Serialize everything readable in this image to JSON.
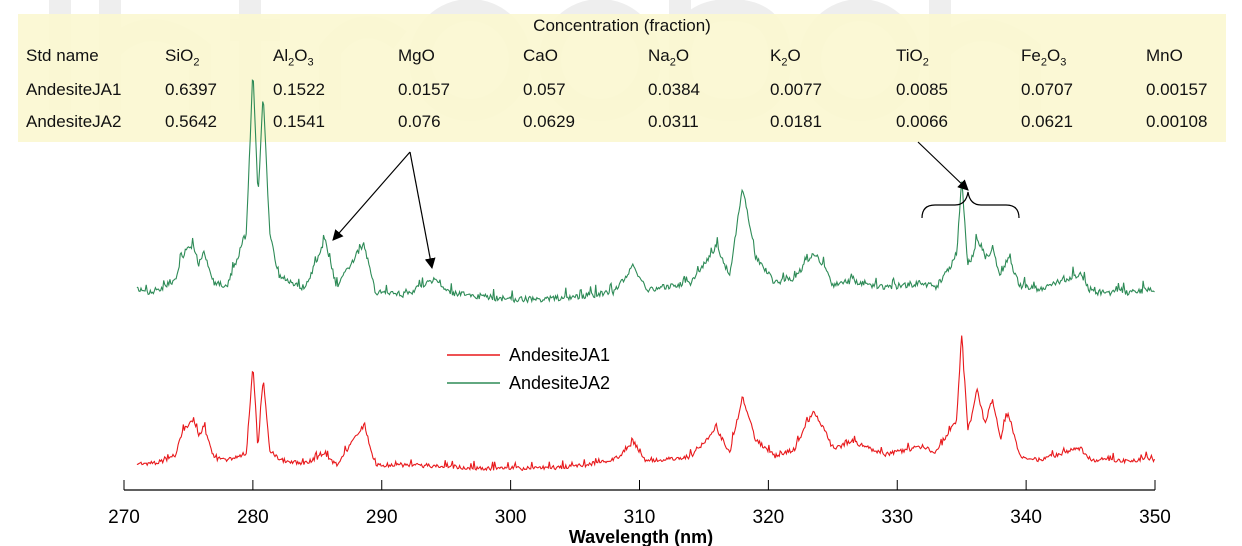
{
  "chart_data": {
    "type": "line",
    "xlabel": "Wavelength (nm)",
    "xlim": [
      270,
      350
    ],
    "xticks": [
      270,
      280,
      290,
      300,
      310,
      320,
      330,
      340,
      350
    ],
    "y_axis_shown": false,
    "legend_position": "center",
    "series": [
      {
        "name": "AndesiteJA1",
        "color": "#e8191c",
        "x": [
          271,
          272,
          273,
          274,
          274.5,
          275,
          275.4,
          275.8,
          276.2,
          277,
          278,
          279.5,
          280,
          280.4,
          280.8,
          281.3,
          282,
          284,
          285.6,
          286.5,
          288.6,
          289.5,
          292,
          295,
          298,
          300,
          302,
          305,
          308,
          309,
          309.5,
          310.5,
          314,
          316,
          317,
          318,
          319,
          320.5,
          322,
          323.5,
          324,
          324.5,
          325,
          326.5,
          329,
          332,
          333,
          334.6,
          335,
          335.5,
          336.2,
          336.8,
          337.4,
          338,
          338.6,
          339.5,
          341,
          344.2,
          345,
          346.5,
          348,
          349.5,
          350
        ],
        "values": [
          0.04,
          0.04,
          0.05,
          0.09,
          0.22,
          0.27,
          0.3,
          0.2,
          0.26,
          0.07,
          0.06,
          0.1,
          0.62,
          0.12,
          0.55,
          0.12,
          0.06,
          0.04,
          0.09,
          0.03,
          0.26,
          0.03,
          0.03,
          0.02,
          0.01,
          0.01,
          0.01,
          0.02,
          0.06,
          0.12,
          0.17,
          0.05,
          0.08,
          0.24,
          0.1,
          0.43,
          0.18,
          0.08,
          0.12,
          0.35,
          0.28,
          0.22,
          0.12,
          0.17,
          0.09,
          0.14,
          0.1,
          0.29,
          0.78,
          0.22,
          0.48,
          0.27,
          0.42,
          0.18,
          0.34,
          0.08,
          0.06,
          0.13,
          0.06,
          0.06,
          0.05,
          0.07,
          0.05
        ]
      },
      {
        "name": "AndesiteJA2",
        "color": "#2e8b57",
        "x": [
          271,
          272,
          273,
          274,
          274.5,
          275,
          275.4,
          275.8,
          276.2,
          277,
          278,
          279.5,
          280,
          280.4,
          280.8,
          281.3,
          282,
          284,
          285.6,
          286.5,
          288.6,
          289.5,
          292,
          293.5,
          294.3,
          295,
          298,
          300,
          302,
          305,
          308,
          309,
          309.5,
          310.5,
          314,
          316,
          317,
          318,
          319,
          320.5,
          322,
          323.5,
          324,
          324.5,
          325,
          326.5,
          329,
          332,
          333,
          334.6,
          335,
          335.5,
          336.2,
          336.8,
          337.4,
          338,
          338.6,
          339.5,
          341,
          344.2,
          345,
          346.5,
          348,
          349.5,
          350
        ],
        "values": [
          0.06,
          0.05,
          0.07,
          0.1,
          0.2,
          0.24,
          0.25,
          0.17,
          0.22,
          0.09,
          0.08,
          0.3,
          1.0,
          0.45,
          0.9,
          0.3,
          0.12,
          0.06,
          0.27,
          0.07,
          0.26,
          0.05,
          0.04,
          0.09,
          0.11,
          0.05,
          0.03,
          0.02,
          0.02,
          0.03,
          0.05,
          0.12,
          0.17,
          0.06,
          0.09,
          0.25,
          0.12,
          0.5,
          0.2,
          0.09,
          0.11,
          0.22,
          0.18,
          0.15,
          0.08,
          0.1,
          0.07,
          0.09,
          0.07,
          0.2,
          0.53,
          0.15,
          0.27,
          0.2,
          0.23,
          0.12,
          0.2,
          0.08,
          0.06,
          0.13,
          0.05,
          0.05,
          0.05,
          0.06,
          0.05
        ]
      }
    ],
    "annotations": [
      "arrows to MgO lines near 285.6 nm and 293.7 nm",
      "arrow with brace to TiO2 lines near 332-340 nm"
    ]
  },
  "table": {
    "title": "Concentration (fraction)",
    "header_label": "Std name",
    "columns": [
      {
        "base": "SiO",
        "sub": "2",
        "tail": ""
      },
      {
        "base": "Al",
        "sub": "2",
        "tail": "O",
        "sub2": "3"
      },
      {
        "base": "MgO",
        "sub": "",
        "tail": ""
      },
      {
        "base": "CaO",
        "sub": "",
        "tail": ""
      },
      {
        "base": "Na",
        "sub": "2",
        "tail": "O"
      },
      {
        "base": "K",
        "sub": "2",
        "tail": "O"
      },
      {
        "base": "TiO",
        "sub": "2",
        "tail": ""
      },
      {
        "base": "Fe",
        "sub": "2",
        "tail": "O",
        "sub2": "3"
      },
      {
        "base": "MnO",
        "sub": "",
        "tail": ""
      }
    ],
    "rows": [
      {
        "name": "AndesiteJA1",
        "values": [
          "0.6397",
          "0.1522",
          "0.0157",
          "0.057",
          "0.0384",
          "0.0077",
          "0.0085",
          "0.0707",
          "0.00157"
        ]
      },
      {
        "name": "AndesiteJA2",
        "values": [
          "0.5642",
          "0.1541",
          "0.076",
          "0.0629",
          "0.0311",
          "0.0181",
          "0.0066",
          "0.0621",
          "0.00108"
        ]
      }
    ]
  },
  "colors": {
    "table_bg": "#fbf8d2",
    "ja1": "#e8191c",
    "ja2": "#2e8b57"
  }
}
